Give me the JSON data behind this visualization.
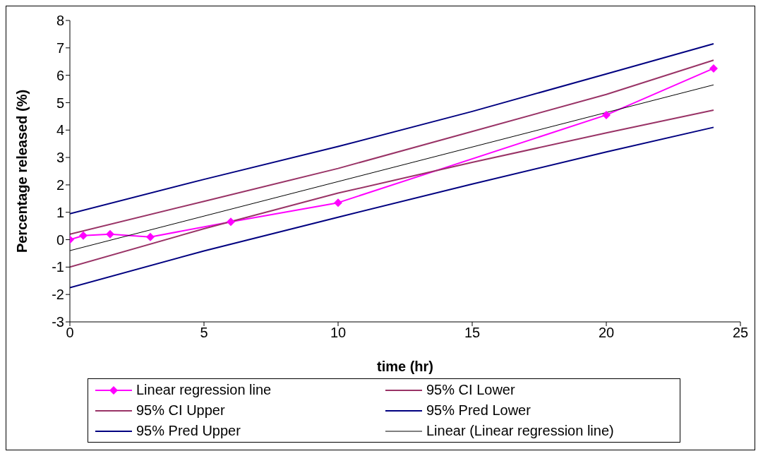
{
  "chart_data": {
    "type": "line",
    "xlabel": "time (hr)",
    "ylabel": "Percentage released (%)",
    "xlim": [
      0,
      25
    ],
    "xticks": [
      0,
      5,
      10,
      15,
      20,
      25
    ],
    "ylim": [
      -3,
      8
    ],
    "yticks": [
      -3,
      -2,
      -1,
      0,
      1,
      2,
      3,
      4,
      5,
      6,
      7,
      8
    ],
    "grid": false,
    "legend": "bottom",
    "line_style": "solid",
    "series": [
      {
        "name": "Linear regression line",
        "color": "#ff00ff",
        "marker": "diamond",
        "x": [
          0,
          0.5,
          1.5,
          3,
          6,
          10,
          20,
          24
        ],
        "values": [
          0,
          0.15,
          0.2,
          0.1,
          0.65,
          1.35,
          4.55,
          6.25
        ]
      },
      {
        "name": "95% CI Lower",
        "color": "#993366",
        "marker": "none",
        "x": [
          0,
          5,
          10,
          15,
          20,
          24
        ],
        "values": [
          -1.0,
          0.4,
          1.7,
          2.82,
          3.9,
          4.73
        ]
      },
      {
        "name": "95% CI Upper",
        "color": "#993366",
        "marker": "none",
        "x": [
          0,
          5,
          10,
          15,
          20,
          24
        ],
        "values": [
          0.2,
          1.4,
          2.6,
          3.95,
          5.3,
          6.55
        ]
      },
      {
        "name": "95% Pred Lower",
        "color": "#000080",
        "marker": "none",
        "x": [
          0,
          5,
          10,
          15,
          20,
          24
        ],
        "values": [
          -1.75,
          -0.41,
          0.82,
          2.03,
          3.2,
          4.1
        ]
      },
      {
        "name": "95% Pred Upper",
        "color": "#000080",
        "marker": "none",
        "x": [
          0,
          5,
          10,
          15,
          20,
          24
        ],
        "values": [
          0.95,
          2.2,
          3.4,
          4.68,
          6.05,
          7.15
        ]
      },
      {
        "name": "Linear (Linear regression line)",
        "color": "#000000",
        "marker": "none",
        "x": [
          0,
          24
        ],
        "values": [
          -0.4,
          5.65
        ]
      }
    ]
  }
}
